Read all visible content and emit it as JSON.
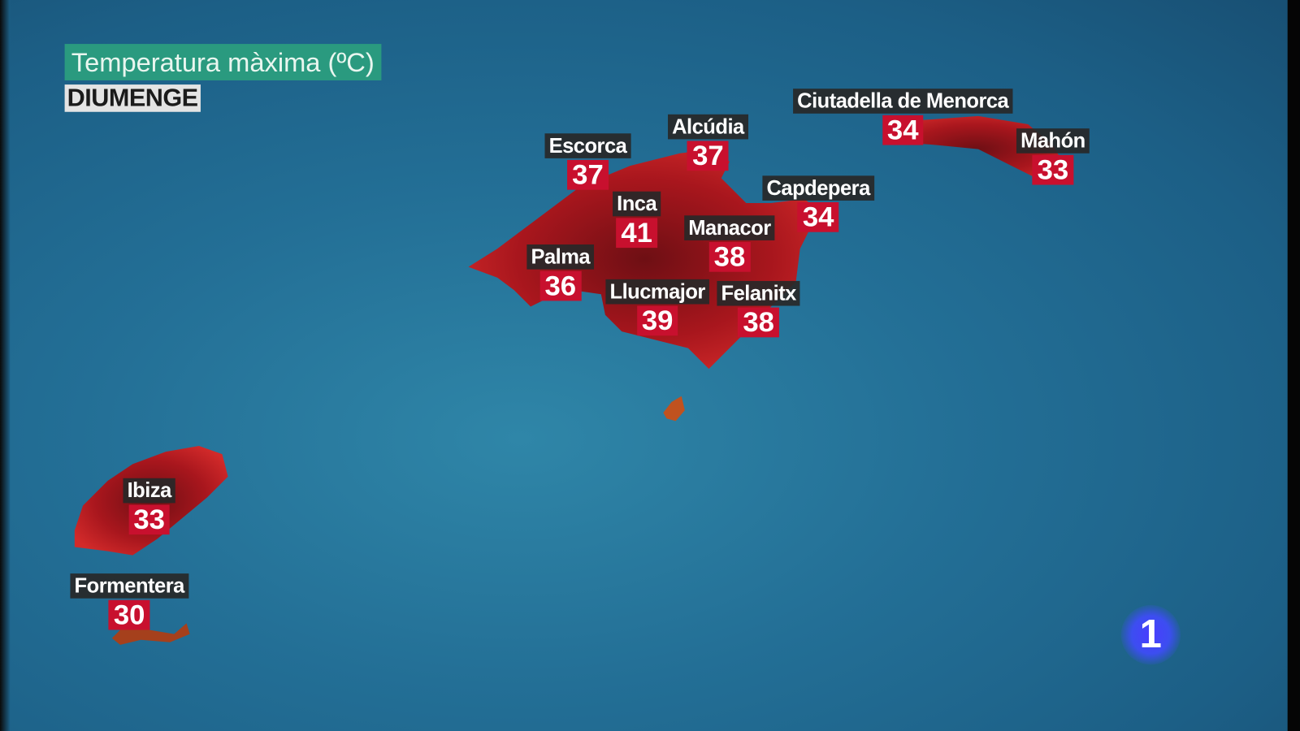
{
  "header": {
    "title": "Temperatura màxima (ºC)",
    "day": "DIUMENGE"
  },
  "colors": {
    "land": "#c01b22",
    "value_box": "#c8102e",
    "title_box": "#2a9a7f",
    "sea": "#236f96"
  },
  "locations": [
    {
      "name": "Escorca",
      "value": "37"
    },
    {
      "name": "Alcúdia",
      "value": "37"
    },
    {
      "name": "Ciutadella de Menorca",
      "value": "34"
    },
    {
      "name": "Mahón",
      "value": "33"
    },
    {
      "name": "Capdepera",
      "value": "34"
    },
    {
      "name": "Inca",
      "value": "41"
    },
    {
      "name": "Manacor",
      "value": "38"
    },
    {
      "name": "Palma",
      "value": "36"
    },
    {
      "name": "Llucmajor",
      "value": "39"
    },
    {
      "name": "Felanitx",
      "value": "38"
    },
    {
      "name": "Ibiza",
      "value": "33"
    },
    {
      "name": "Formentera",
      "value": "30"
    }
  ],
  "logo": {
    "text": "1"
  }
}
